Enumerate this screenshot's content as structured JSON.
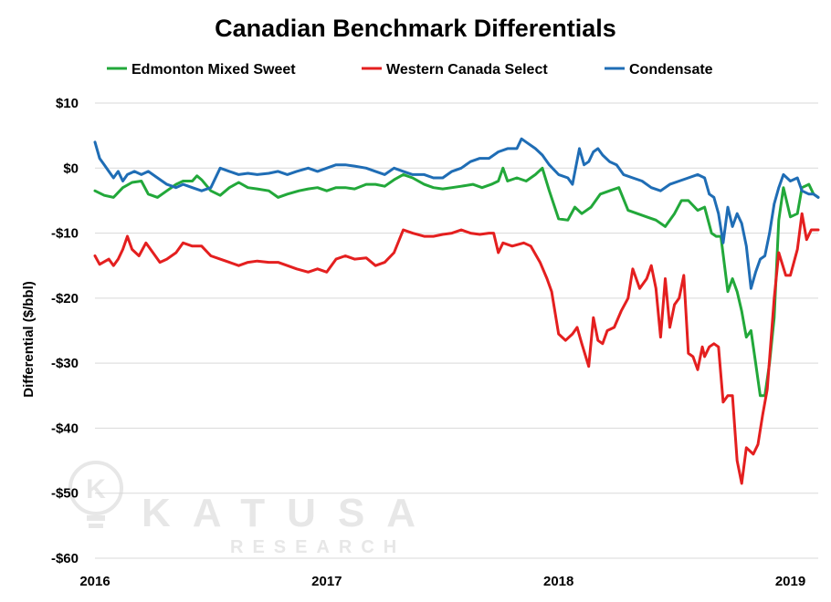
{
  "chart_data": {
    "type": "line",
    "title": "Canadian Benchmark Differentials",
    "xlabel": "",
    "ylabel": "Differential ($/bbl)",
    "ylim": [
      -60,
      10
    ],
    "xlim": [
      2016.0,
      2019.12
    ],
    "y_ticks": [
      10,
      0,
      -10,
      -20,
      -30,
      -40,
      -50,
      -60
    ],
    "y_tick_labels": [
      "$10",
      "$0",
      "-$10",
      "-$20",
      "-$30",
      "-$40",
      "-$50",
      "-$60"
    ],
    "x_ticks": [
      2016,
      2017,
      2018,
      2019
    ],
    "x_tick_labels": [
      "2016",
      "2017",
      "2018",
      "2019"
    ],
    "grid": "horizontal",
    "legend_position": "top",
    "watermark": {
      "brand": "KATUSA",
      "sub": "RESEARCH",
      "logo_letter": "K"
    },
    "series": [
      {
        "name": "Edmonton Mixed Sweet",
        "color": "#22a83a",
        "points": [
          [
            2016.0,
            -3.5
          ],
          [
            2016.04,
            -4.2
          ],
          [
            2016.08,
            -4.5
          ],
          [
            2016.12,
            -3.0
          ],
          [
            2016.16,
            -2.2
          ],
          [
            2016.2,
            -2.0
          ],
          [
            2016.23,
            -4.0
          ],
          [
            2016.27,
            -4.5
          ],
          [
            2016.31,
            -3.5
          ],
          [
            2016.35,
            -2.5
          ],
          [
            2016.38,
            -2.0
          ],
          [
            2016.42,
            -2.0
          ],
          [
            2016.44,
            -1.2
          ],
          [
            2016.46,
            -1.8
          ],
          [
            2016.5,
            -3.5
          ],
          [
            2016.54,
            -4.2
          ],
          [
            2016.58,
            -3.0
          ],
          [
            2016.62,
            -2.2
          ],
          [
            2016.66,
            -3.0
          ],
          [
            2016.7,
            -3.2
          ],
          [
            2016.75,
            -3.5
          ],
          [
            2016.79,
            -4.5
          ],
          [
            2016.83,
            -4.0
          ],
          [
            2016.88,
            -3.5
          ],
          [
            2016.92,
            -3.2
          ],
          [
            2016.96,
            -3.0
          ],
          [
            2017.0,
            -3.5
          ],
          [
            2017.04,
            -3.0
          ],
          [
            2017.08,
            -3.0
          ],
          [
            2017.12,
            -3.2
          ],
          [
            2017.17,
            -2.5
          ],
          [
            2017.21,
            -2.5
          ],
          [
            2017.25,
            -2.8
          ],
          [
            2017.29,
            -1.8
          ],
          [
            2017.33,
            -1.0
          ],
          [
            2017.37,
            -1.5
          ],
          [
            2017.42,
            -2.5
          ],
          [
            2017.46,
            -3.0
          ],
          [
            2017.5,
            -3.2
          ],
          [
            2017.54,
            -3.0
          ],
          [
            2017.58,
            -2.8
          ],
          [
            2017.63,
            -2.5
          ],
          [
            2017.67,
            -3.0
          ],
          [
            2017.71,
            -2.5
          ],
          [
            2017.74,
            -2.0
          ],
          [
            2017.76,
            0.0
          ],
          [
            2017.78,
            -2.0
          ],
          [
            2017.82,
            -1.5
          ],
          [
            2017.86,
            -2.0
          ],
          [
            2017.9,
            -1.0
          ],
          [
            2017.93,
            0.0
          ],
          [
            2017.96,
            -3.5
          ],
          [
            2018.0,
            -7.8
          ],
          [
            2018.04,
            -8.0
          ],
          [
            2018.07,
            -6.0
          ],
          [
            2018.1,
            -7.0
          ],
          [
            2018.14,
            -6.0
          ],
          [
            2018.18,
            -4.0
          ],
          [
            2018.22,
            -3.5
          ],
          [
            2018.26,
            -3.0
          ],
          [
            2018.3,
            -6.5
          ],
          [
            2018.34,
            -7.0
          ],
          [
            2018.38,
            -7.5
          ],
          [
            2018.42,
            -8.0
          ],
          [
            2018.46,
            -9.0
          ],
          [
            2018.5,
            -7.0
          ],
          [
            2018.53,
            -5.0
          ],
          [
            2018.56,
            -5.0
          ],
          [
            2018.6,
            -6.5
          ],
          [
            2018.63,
            -6.0
          ],
          [
            2018.66,
            -10.0
          ],
          [
            2018.68,
            -10.5
          ],
          [
            2018.7,
            -10.5
          ],
          [
            2018.73,
            -19.0
          ],
          [
            2018.75,
            -17.0
          ],
          [
            2018.77,
            -19.0
          ],
          [
            2018.79,
            -22.0
          ],
          [
            2018.81,
            -26.0
          ],
          [
            2018.83,
            -25.0
          ],
          [
            2018.85,
            -30.0
          ],
          [
            2018.87,
            -35.0
          ],
          [
            2018.89,
            -35.0
          ],
          [
            2018.91,
            -30.0
          ],
          [
            2018.93,
            -23.0
          ],
          [
            2018.95,
            -8.0
          ],
          [
            2018.97,
            -3.0
          ],
          [
            2019.0,
            -7.5
          ],
          [
            2019.03,
            -7.0
          ],
          [
            2019.05,
            -3.0
          ],
          [
            2019.08,
            -2.5
          ],
          [
            2019.1,
            -4.0
          ],
          [
            2019.12,
            -4.5
          ]
        ]
      },
      {
        "name": "Western Canada Select",
        "color": "#e41f1f",
        "points": [
          [
            2016.0,
            -13.5
          ],
          [
            2016.02,
            -14.8
          ],
          [
            2016.06,
            -14.0
          ],
          [
            2016.08,
            -15.0
          ],
          [
            2016.1,
            -14.0
          ],
          [
            2016.12,
            -12.5
          ],
          [
            2016.14,
            -10.5
          ],
          [
            2016.16,
            -12.5
          ],
          [
            2016.19,
            -13.5
          ],
          [
            2016.22,
            -11.5
          ],
          [
            2016.25,
            -13.0
          ],
          [
            2016.28,
            -14.5
          ],
          [
            2016.31,
            -14.0
          ],
          [
            2016.35,
            -13.0
          ],
          [
            2016.38,
            -11.5
          ],
          [
            2016.42,
            -12.0
          ],
          [
            2016.46,
            -12.0
          ],
          [
            2016.5,
            -13.5
          ],
          [
            2016.54,
            -14.0
          ],
          [
            2016.58,
            -14.5
          ],
          [
            2016.62,
            -15.0
          ],
          [
            2016.66,
            -14.5
          ],
          [
            2016.7,
            -14.3
          ],
          [
            2016.75,
            -14.5
          ],
          [
            2016.79,
            -14.5
          ],
          [
            2016.83,
            -15.0
          ],
          [
            2016.87,
            -15.5
          ],
          [
            2016.92,
            -16.0
          ],
          [
            2016.96,
            -15.5
          ],
          [
            2017.0,
            -16.0
          ],
          [
            2017.04,
            -14.0
          ],
          [
            2017.08,
            -13.5
          ],
          [
            2017.12,
            -14.0
          ],
          [
            2017.17,
            -13.8
          ],
          [
            2017.21,
            -15.0
          ],
          [
            2017.25,
            -14.5
          ],
          [
            2017.29,
            -13.0
          ],
          [
            2017.33,
            -9.5
          ],
          [
            2017.37,
            -10.0
          ],
          [
            2017.42,
            -10.5
          ],
          [
            2017.46,
            -10.5
          ],
          [
            2017.5,
            -10.2
          ],
          [
            2017.54,
            -10.0
          ],
          [
            2017.58,
            -9.5
          ],
          [
            2017.62,
            -10.0
          ],
          [
            2017.66,
            -10.2
          ],
          [
            2017.7,
            -10.0
          ],
          [
            2017.72,
            -10.0
          ],
          [
            2017.74,
            -13.0
          ],
          [
            2017.76,
            -11.5
          ],
          [
            2017.8,
            -12.0
          ],
          [
            2017.85,
            -11.5
          ],
          [
            2017.88,
            -12.0
          ],
          [
            2017.92,
            -14.5
          ],
          [
            2017.95,
            -17.0
          ],
          [
            2017.97,
            -19.0
          ],
          [
            2018.0,
            -25.5
          ],
          [
            2018.03,
            -26.5
          ],
          [
            2018.06,
            -25.5
          ],
          [
            2018.08,
            -24.5
          ],
          [
            2018.1,
            -27.0
          ],
          [
            2018.13,
            -30.5
          ],
          [
            2018.15,
            -23.0
          ],
          [
            2018.17,
            -26.5
          ],
          [
            2018.19,
            -27.0
          ],
          [
            2018.21,
            -25.0
          ],
          [
            2018.24,
            -24.5
          ],
          [
            2018.27,
            -22.0
          ],
          [
            2018.3,
            -20.0
          ],
          [
            2018.32,
            -15.5
          ],
          [
            2018.35,
            -18.5
          ],
          [
            2018.38,
            -17.0
          ],
          [
            2018.4,
            -15.0
          ],
          [
            2018.42,
            -18.5
          ],
          [
            2018.44,
            -26.0
          ],
          [
            2018.46,
            -17.0
          ],
          [
            2018.48,
            -24.5
          ],
          [
            2018.5,
            -21.0
          ],
          [
            2018.52,
            -20.0
          ],
          [
            2018.54,
            -16.5
          ],
          [
            2018.56,
            -28.5
          ],
          [
            2018.58,
            -29.0
          ],
          [
            2018.6,
            -31.0
          ],
          [
            2018.62,
            -27.5
          ],
          [
            2018.63,
            -29.0
          ],
          [
            2018.65,
            -27.5
          ],
          [
            2018.67,
            -27.0
          ],
          [
            2018.69,
            -27.5
          ],
          [
            2018.71,
            -36.0
          ],
          [
            2018.73,
            -35.0
          ],
          [
            2018.75,
            -35.0
          ],
          [
            2018.77,
            -45.0
          ],
          [
            2018.79,
            -48.5
          ],
          [
            2018.81,
            -43.0
          ],
          [
            2018.84,
            -44.0
          ],
          [
            2018.86,
            -42.5
          ],
          [
            2018.88,
            -38.0
          ],
          [
            2018.9,
            -34.0
          ],
          [
            2018.93,
            -20.0
          ],
          [
            2018.95,
            -13.0
          ],
          [
            2018.98,
            -16.5
          ],
          [
            2019.0,
            -16.5
          ],
          [
            2019.03,
            -12.5
          ],
          [
            2019.05,
            -7.0
          ],
          [
            2019.07,
            -11.0
          ],
          [
            2019.09,
            -9.5
          ],
          [
            2019.12,
            -9.5
          ]
        ]
      },
      {
        "name": "Condensate",
        "color": "#1f6db5",
        "points": [
          [
            2016.0,
            4.0
          ],
          [
            2016.02,
            1.5
          ],
          [
            2016.04,
            0.5
          ],
          [
            2016.06,
            -0.5
          ],
          [
            2016.08,
            -1.5
          ],
          [
            2016.1,
            -0.5
          ],
          [
            2016.12,
            -2.0
          ],
          [
            2016.14,
            -1.0
          ],
          [
            2016.17,
            -0.5
          ],
          [
            2016.2,
            -1.0
          ],
          [
            2016.23,
            -0.5
          ],
          [
            2016.27,
            -1.5
          ],
          [
            2016.31,
            -2.5
          ],
          [
            2016.35,
            -3.0
          ],
          [
            2016.38,
            -2.5
          ],
          [
            2016.42,
            -3.0
          ],
          [
            2016.46,
            -3.5
          ],
          [
            2016.5,
            -3.0
          ],
          [
            2016.54,
            0.0
          ],
          [
            2016.58,
            -0.5
          ],
          [
            2016.62,
            -1.0
          ],
          [
            2016.66,
            -0.8
          ],
          [
            2016.7,
            -1.0
          ],
          [
            2016.75,
            -0.8
          ],
          [
            2016.79,
            -0.5
          ],
          [
            2016.83,
            -1.0
          ],
          [
            2016.87,
            -0.5
          ],
          [
            2016.92,
            0.0
          ],
          [
            2016.96,
            -0.5
          ],
          [
            2017.0,
            0.0
          ],
          [
            2017.04,
            0.5
          ],
          [
            2017.08,
            0.5
          ],
          [
            2017.12,
            0.3
          ],
          [
            2017.17,
            0.0
          ],
          [
            2017.21,
            -0.5
          ],
          [
            2017.25,
            -1.0
          ],
          [
            2017.29,
            0.0
          ],
          [
            2017.33,
            -0.5
          ],
          [
            2017.37,
            -1.0
          ],
          [
            2017.42,
            -1.0
          ],
          [
            2017.46,
            -1.5
          ],
          [
            2017.5,
            -1.5
          ],
          [
            2017.54,
            -0.5
          ],
          [
            2017.58,
            0.0
          ],
          [
            2017.62,
            1.0
          ],
          [
            2017.66,
            1.5
          ],
          [
            2017.7,
            1.5
          ],
          [
            2017.74,
            2.5
          ],
          [
            2017.78,
            3.0
          ],
          [
            2017.82,
            3.0
          ],
          [
            2017.84,
            4.5
          ],
          [
            2017.86,
            4.0
          ],
          [
            2017.9,
            3.0
          ],
          [
            2017.93,
            2.0
          ],
          [
            2017.96,
            0.5
          ],
          [
            2018.0,
            -1.0
          ],
          [
            2018.04,
            -1.5
          ],
          [
            2018.06,
            -2.5
          ],
          [
            2018.09,
            3.0
          ],
          [
            2018.11,
            0.5
          ],
          [
            2018.13,
            1.0
          ],
          [
            2018.15,
            2.5
          ],
          [
            2018.17,
            3.0
          ],
          [
            2018.19,
            2.0
          ],
          [
            2018.22,
            1.0
          ],
          [
            2018.25,
            0.5
          ],
          [
            2018.28,
            -1.0
          ],
          [
            2018.32,
            -1.5
          ],
          [
            2018.36,
            -2.0
          ],
          [
            2018.4,
            -3.0
          ],
          [
            2018.44,
            -3.5
          ],
          [
            2018.48,
            -2.5
          ],
          [
            2018.52,
            -2.0
          ],
          [
            2018.56,
            -1.5
          ],
          [
            2018.6,
            -1.0
          ],
          [
            2018.63,
            -1.5
          ],
          [
            2018.65,
            -4.0
          ],
          [
            2018.67,
            -4.5
          ],
          [
            2018.69,
            -7.0
          ],
          [
            2018.71,
            -11.5
          ],
          [
            2018.73,
            -6.0
          ],
          [
            2018.75,
            -9.0
          ],
          [
            2018.77,
            -7.0
          ],
          [
            2018.79,
            -8.5
          ],
          [
            2018.81,
            -12.0
          ],
          [
            2018.83,
            -18.5
          ],
          [
            2018.85,
            -16.0
          ],
          [
            2018.87,
            -14.0
          ],
          [
            2018.89,
            -13.5
          ],
          [
            2018.91,
            -10.0
          ],
          [
            2018.93,
            -5.5
          ],
          [
            2018.95,
            -3.0
          ],
          [
            2018.97,
            -1.0
          ],
          [
            2019.0,
            -2.0
          ],
          [
            2019.03,
            -1.5
          ],
          [
            2019.05,
            -3.5
          ],
          [
            2019.08,
            -4.0
          ],
          [
            2019.1,
            -4.0
          ],
          [
            2019.12,
            -4.5
          ]
        ]
      }
    ]
  }
}
